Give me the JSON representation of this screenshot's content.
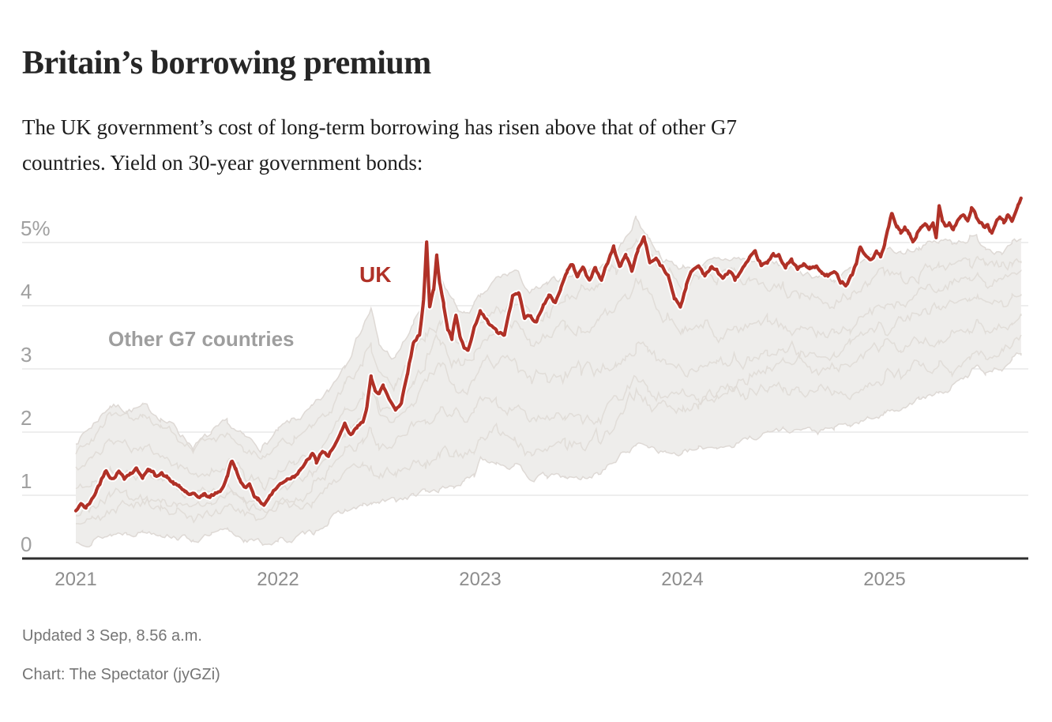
{
  "header": {
    "title": "Britain’s borrowing premium",
    "subtitle_line1": "The UK government’s cost of long-term borrowing has risen above that of other G7",
    "subtitle_line2": "countries. Yield on 30-year government bonds:"
  },
  "footer": {
    "updated": "Updated 3 Sep, 8.56 a.m.",
    "credit": "Chart: The Spectator (jyGZi)"
  },
  "chart_data": {
    "type": "line",
    "title": "Britain’s borrowing premium",
    "subtitle": "The UK government’s cost of long-term borrowing has risen above that of other G7 countries. Yield on 30-year government bonds:",
    "unit": "percent",
    "x_axis": {
      "ticks": [
        2021,
        2022,
        2023,
        2024,
        2025
      ],
      "range": [
        2021.0,
        2025.675
      ],
      "gridlines": false
    },
    "y_axis": {
      "ticks": [
        0,
        1,
        2,
        3,
        4,
        5
      ],
      "tick_labels": [
        "0",
        "1",
        "2",
        "3",
        "4",
        "5%"
      ],
      "range": [
        0,
        5.85
      ],
      "gridlines": true
    },
    "series_labels": {
      "uk": "UK",
      "other": "Other G7 countries"
    },
    "legend_position": "annotations-inside-plot",
    "colors": {
      "uk_line": "#b03127",
      "uk_halo": "#ffffff",
      "band_fill": "#eeedeb",
      "band_line": "#ded9d5",
      "gridline": "#e4e4e4",
      "axis_line": "#2e2e2e",
      "y_tick_text": "#a0a0a0",
      "x_tick_text": "#8d8d8d",
      "annotation_gray": "#9e9e9e",
      "footer_text": "#757575"
    },
    "uk_series": [
      [
        2021.0,
        0.75
      ],
      [
        2021.03,
        0.86
      ],
      [
        2021.05,
        0.8
      ],
      [
        2021.08,
        0.92
      ],
      [
        2021.1,
        1.06
      ],
      [
        2021.12,
        1.2
      ],
      [
        2021.15,
        1.42
      ],
      [
        2021.18,
        1.28
      ],
      [
        2021.21,
        1.38
      ],
      [
        2021.24,
        1.3
      ],
      [
        2021.27,
        1.36
      ],
      [
        2021.3,
        1.42
      ],
      [
        2021.33,
        1.31
      ],
      [
        2021.36,
        1.39
      ],
      [
        2021.39,
        1.33
      ],
      [
        2021.42,
        1.36
      ],
      [
        2021.45,
        1.28
      ],
      [
        2021.48,
        1.2
      ],
      [
        2021.51,
        1.12
      ],
      [
        2021.54,
        1.06
      ],
      [
        2021.57,
        1.0
      ],
      [
        2021.6,
        0.96
      ],
      [
        2021.63,
        1.01
      ],
      [
        2021.66,
        0.97
      ],
      [
        2021.69,
        1.02
      ],
      [
        2021.72,
        1.1
      ],
      [
        2021.75,
        1.3
      ],
      [
        2021.77,
        1.55
      ],
      [
        2021.79,
        1.44
      ],
      [
        2021.81,
        1.22
      ],
      [
        2021.83,
        1.14
      ],
      [
        2021.86,
        1.18
      ],
      [
        2021.88,
        1.04
      ],
      [
        2021.9,
        0.93
      ],
      [
        2021.93,
        0.86
      ],
      [
        2021.96,
        1.0
      ],
      [
        2022.0,
        1.14
      ],
      [
        2022.04,
        1.26
      ],
      [
        2022.08,
        1.32
      ],
      [
        2022.11,
        1.44
      ],
      [
        2022.14,
        1.52
      ],
      [
        2022.17,
        1.65
      ],
      [
        2022.19,
        1.51
      ],
      [
        2022.22,
        1.7
      ],
      [
        2022.25,
        1.58
      ],
      [
        2022.28,
        1.82
      ],
      [
        2022.31,
        1.95
      ],
      [
        2022.33,
        2.09
      ],
      [
        2022.36,
        1.93
      ],
      [
        2022.39,
        2.05
      ],
      [
        2022.42,
        2.2
      ],
      [
        2022.44,
        2.38
      ],
      [
        2022.46,
        2.86
      ],
      [
        2022.48,
        2.7
      ],
      [
        2022.5,
        2.63
      ],
      [
        2022.52,
        2.72
      ],
      [
        2022.55,
        2.52
      ],
      [
        2022.58,
        2.38
      ],
      [
        2022.61,
        2.47
      ],
      [
        2022.64,
        2.96
      ],
      [
        2022.67,
        3.42
      ],
      [
        2022.7,
        3.56
      ],
      [
        2022.72,
        4.1
      ],
      [
        2022.735,
        4.99
      ],
      [
        2022.75,
        3.95
      ],
      [
        2022.77,
        4.25
      ],
      [
        2022.785,
        4.84
      ],
      [
        2022.8,
        4.38
      ],
      [
        2022.82,
        4.0
      ],
      [
        2022.84,
        3.64
      ],
      [
        2022.86,
        3.48
      ],
      [
        2022.88,
        3.84
      ],
      [
        2022.9,
        3.47
      ],
      [
        2022.92,
        3.32
      ],
      [
        2022.94,
        3.27
      ],
      [
        2022.97,
        3.6
      ],
      [
        2023.0,
        3.88
      ],
      [
        2023.04,
        3.72
      ],
      [
        2023.08,
        3.58
      ],
      [
        2023.12,
        3.53
      ],
      [
        2023.16,
        4.12
      ],
      [
        2023.19,
        4.21
      ],
      [
        2023.22,
        3.79
      ],
      [
        2023.25,
        3.87
      ],
      [
        2023.28,
        3.75
      ],
      [
        2023.31,
        4.02
      ],
      [
        2023.34,
        4.14
      ],
      [
        2023.37,
        4.05
      ],
      [
        2023.4,
        4.3
      ],
      [
        2023.43,
        4.55
      ],
      [
        2023.46,
        4.66
      ],
      [
        2023.48,
        4.5
      ],
      [
        2023.51,
        4.6
      ],
      [
        2023.54,
        4.39
      ],
      [
        2023.57,
        4.62
      ],
      [
        2023.6,
        4.39
      ],
      [
        2023.63,
        4.68
      ],
      [
        2023.66,
        4.94
      ],
      [
        2023.69,
        4.62
      ],
      [
        2023.72,
        4.79
      ],
      [
        2023.75,
        4.57
      ],
      [
        2023.78,
        4.88
      ],
      [
        2023.81,
        5.09
      ],
      [
        2023.84,
        4.7
      ],
      [
        2023.87,
        4.75
      ],
      [
        2023.9,
        4.6
      ],
      [
        2023.93,
        4.47
      ],
      [
        2023.96,
        4.14
      ],
      [
        2023.99,
        4.0
      ],
      [
        2024.02,
        4.34
      ],
      [
        2024.05,
        4.56
      ],
      [
        2024.08,
        4.63
      ],
      [
        2024.11,
        4.5
      ],
      [
        2024.14,
        4.61
      ],
      [
        2024.17,
        4.55
      ],
      [
        2024.2,
        4.44
      ],
      [
        2024.23,
        4.54
      ],
      [
        2024.26,
        4.41
      ],
      [
        2024.3,
        4.6
      ],
      [
        2024.33,
        4.7
      ],
      [
        2024.36,
        4.8
      ],
      [
        2024.39,
        4.64
      ],
      [
        2024.42,
        4.66
      ],
      [
        2024.45,
        4.79
      ],
      [
        2024.48,
        4.81
      ],
      [
        2024.51,
        4.62
      ],
      [
        2024.54,
        4.71
      ],
      [
        2024.57,
        4.57
      ],
      [
        2024.6,
        4.64
      ],
      [
        2024.63,
        4.58
      ],
      [
        2024.66,
        4.63
      ],
      [
        2024.69,
        4.5
      ],
      [
        2024.72,
        4.47
      ],
      [
        2024.75,
        4.52
      ],
      [
        2024.78,
        4.4
      ],
      [
        2024.81,
        4.36
      ],
      [
        2024.84,
        4.52
      ],
      [
        2024.86,
        4.68
      ],
      [
        2024.88,
        4.95
      ],
      [
        2024.9,
        4.8
      ],
      [
        2024.93,
        4.72
      ],
      [
        2024.96,
        4.86
      ],
      [
        2024.98,
        4.75
      ],
      [
        2025.0,
        4.95
      ],
      [
        2025.015,
        5.15
      ],
      [
        2025.035,
        5.43
      ],
      [
        2025.06,
        5.26
      ],
      [
        2025.08,
        5.15
      ],
      [
        2025.1,
        5.21
      ],
      [
        2025.12,
        5.13
      ],
      [
        2025.14,
        5.01
      ],
      [
        2025.16,
        5.13
      ],
      [
        2025.18,
        5.24
      ],
      [
        2025.2,
        5.31
      ],
      [
        2025.22,
        5.19
      ],
      [
        2025.24,
        5.27
      ],
      [
        2025.255,
        5.06
      ],
      [
        2025.27,
        5.56
      ],
      [
        2025.285,
        5.38
      ],
      [
        2025.3,
        5.28
      ],
      [
        2025.32,
        5.34
      ],
      [
        2025.34,
        5.24
      ],
      [
        2025.37,
        5.41
      ],
      [
        2025.39,
        5.46
      ],
      [
        2025.41,
        5.34
      ],
      [
        2025.43,
        5.55
      ],
      [
        2025.45,
        5.42
      ],
      [
        2025.47,
        5.3
      ],
      [
        2025.49,
        5.24
      ],
      [
        2025.51,
        5.27
      ],
      [
        2025.53,
        5.17
      ],
      [
        2025.55,
        5.31
      ],
      [
        2025.57,
        5.38
      ],
      [
        2025.59,
        5.3
      ],
      [
        2025.61,
        5.43
      ],
      [
        2025.63,
        5.33
      ],
      [
        2025.645,
        5.47
      ],
      [
        2025.66,
        5.56
      ],
      [
        2025.675,
        5.69
      ]
    ],
    "other_g7_band": [
      [
        2021.0,
        0.25,
        1.86
      ],
      [
        2021.08,
        0.3,
        2.1
      ],
      [
        2021.17,
        0.38,
        2.44
      ],
      [
        2021.25,
        0.42,
        2.36
      ],
      [
        2021.33,
        0.44,
        2.38
      ],
      [
        2021.42,
        0.42,
        2.25
      ],
      [
        2021.5,
        0.36,
        2.05
      ],
      [
        2021.58,
        0.3,
        1.78
      ],
      [
        2021.67,
        0.36,
        1.95
      ],
      [
        2021.75,
        0.42,
        2.12
      ],
      [
        2021.83,
        0.32,
        1.9
      ],
      [
        2021.92,
        0.24,
        1.76
      ],
      [
        2022.0,
        0.28,
        2.0
      ],
      [
        2022.08,
        0.3,
        2.18
      ],
      [
        2022.17,
        0.42,
        2.35
      ],
      [
        2022.25,
        0.6,
        2.62
      ],
      [
        2022.33,
        0.75,
        3.1
      ],
      [
        2022.42,
        0.82,
        3.7
      ],
      [
        2022.46,
        0.85,
        3.95
      ],
      [
        2022.5,
        0.88,
        3.35
      ],
      [
        2022.58,
        0.92,
        3.15
      ],
      [
        2022.67,
        1.0,
        3.7
      ],
      [
        2022.73,
        1.05,
        4.1
      ],
      [
        2022.8,
        1.1,
        4.4
      ],
      [
        2022.87,
        1.15,
        4.05
      ],
      [
        2022.92,
        1.22,
        3.85
      ],
      [
        2022.97,
        1.28,
        4.0
      ],
      [
        2023.0,
        1.6,
        4.1
      ],
      [
        2023.08,
        1.55,
        4.4
      ],
      [
        2023.17,
        1.45,
        4.55
      ],
      [
        2023.25,
        1.28,
        4.2
      ],
      [
        2023.33,
        1.3,
        4.3
      ],
      [
        2023.42,
        1.28,
        4.45
      ],
      [
        2023.5,
        1.25,
        4.55
      ],
      [
        2023.58,
        1.35,
        4.6
      ],
      [
        2023.67,
        1.55,
        4.85
      ],
      [
        2023.72,
        1.7,
        5.05
      ],
      [
        2023.77,
        1.78,
        5.4
      ],
      [
        2023.83,
        1.82,
        5.1
      ],
      [
        2023.92,
        1.68,
        4.7
      ],
      [
        2024.0,
        1.65,
        4.6
      ],
      [
        2024.08,
        1.72,
        4.65
      ],
      [
        2024.17,
        1.78,
        4.68
      ],
      [
        2024.25,
        1.8,
        4.75
      ],
      [
        2024.33,
        1.9,
        4.72
      ],
      [
        2024.42,
        2.0,
        4.68
      ],
      [
        2024.5,
        2.05,
        4.62
      ],
      [
        2024.58,
        2.05,
        4.55
      ],
      [
        2024.67,
        2.0,
        4.48
      ],
      [
        2024.75,
        2.05,
        4.42
      ],
      [
        2024.83,
        2.1,
        4.55
      ],
      [
        2024.92,
        2.2,
        4.7
      ],
      [
        2025.0,
        2.3,
        4.9
      ],
      [
        2025.08,
        2.4,
        4.85
      ],
      [
        2025.17,
        2.52,
        4.95
      ],
      [
        2025.27,
        2.6,
        5.0
      ],
      [
        2025.33,
        2.7,
        5.02
      ],
      [
        2025.42,
        2.9,
        5.08
      ],
      [
        2025.46,
        3.1,
        5.05
      ],
      [
        2025.5,
        2.95,
        4.95
      ],
      [
        2025.58,
        3.05,
        4.9
      ],
      [
        2025.63,
        3.15,
        4.95
      ],
      [
        2025.675,
        3.25,
        4.97
      ]
    ]
  }
}
